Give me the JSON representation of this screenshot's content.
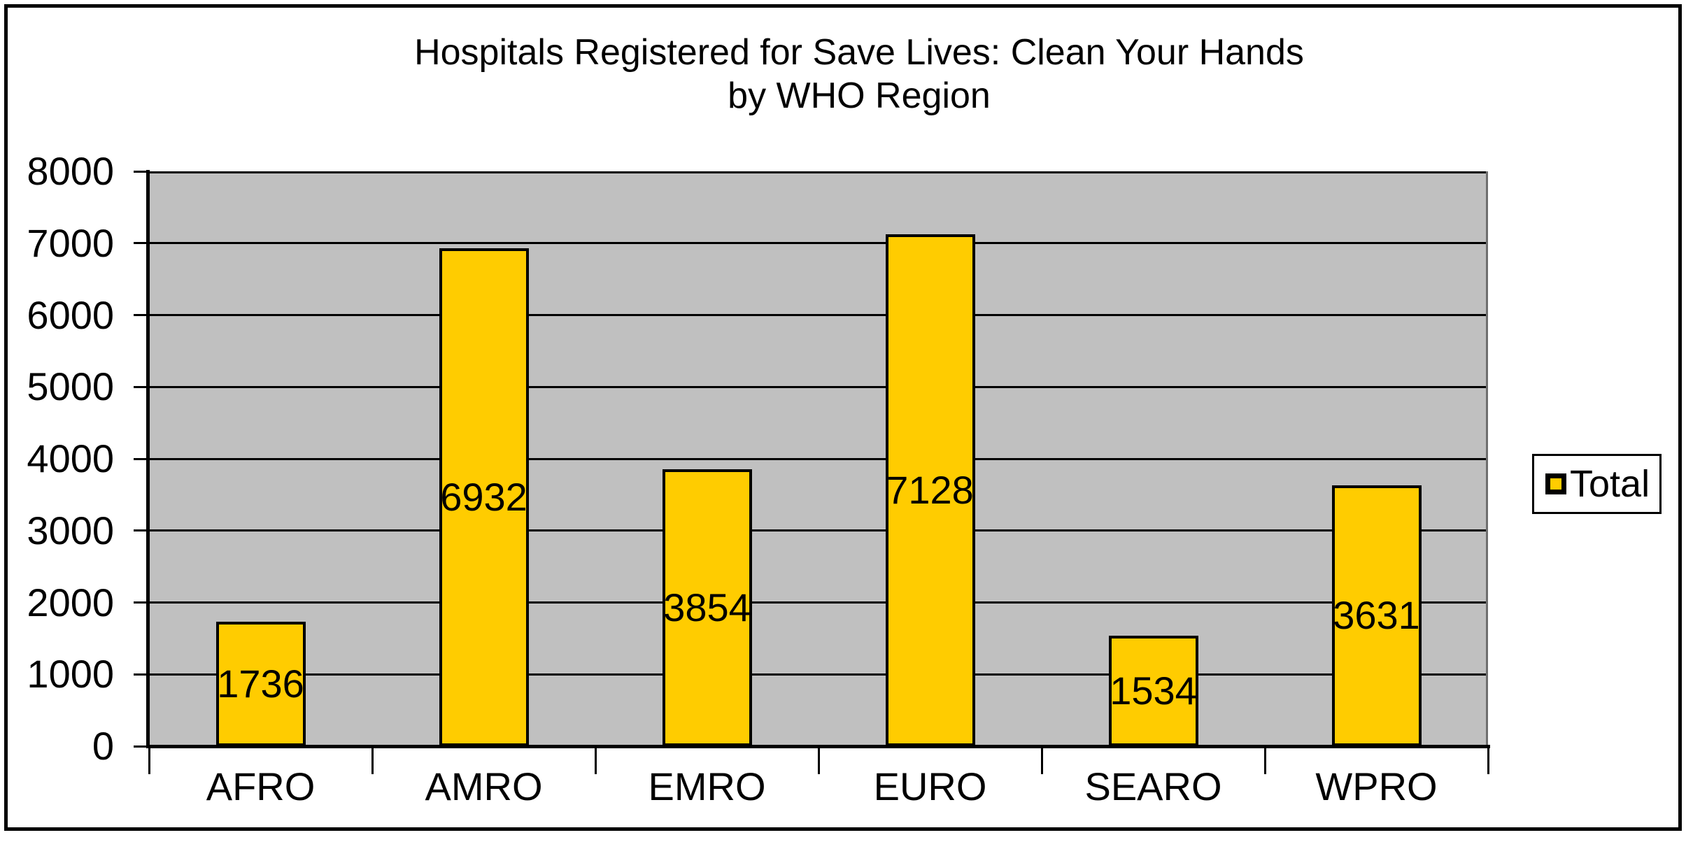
{
  "chart": {
    "title_line1": "Hospitals Registered for Save Lives: Clean Your Hands",
    "title_line2": "by WHO Region",
    "colors": {
      "bar_fill": "#FFCC00",
      "bar_border": "#000000",
      "plot_background": "#C0C0C0",
      "gridline": "#000000",
      "axis_line": "#000000",
      "plot_right_border": "#6e6e6e",
      "chart_border": "#000000",
      "legend_background": "#FFFFFF",
      "text": "#000000"
    }
  },
  "chart_data": {
    "type": "bar",
    "title": "Hospitals Registered for Save Lives: Clean Your Hands by WHO Region",
    "categories": [
      "AFRO",
      "AMRO",
      "EMRO",
      "EURO",
      "SEARO",
      "WPRO"
    ],
    "series": [
      {
        "name": "Total",
        "values": [
          1736,
          6932,
          3854,
          7128,
          1534,
          3631
        ]
      }
    ],
    "xlabel": "",
    "ylabel": "",
    "ylim": [
      0,
      8000
    ],
    "ytick_interval": 1000,
    "yticks": [
      0,
      1000,
      2000,
      3000,
      4000,
      5000,
      6000,
      7000,
      8000
    ],
    "grid": true,
    "gridlines": "horizontal",
    "data_labels": "center",
    "legend_position": "right"
  }
}
